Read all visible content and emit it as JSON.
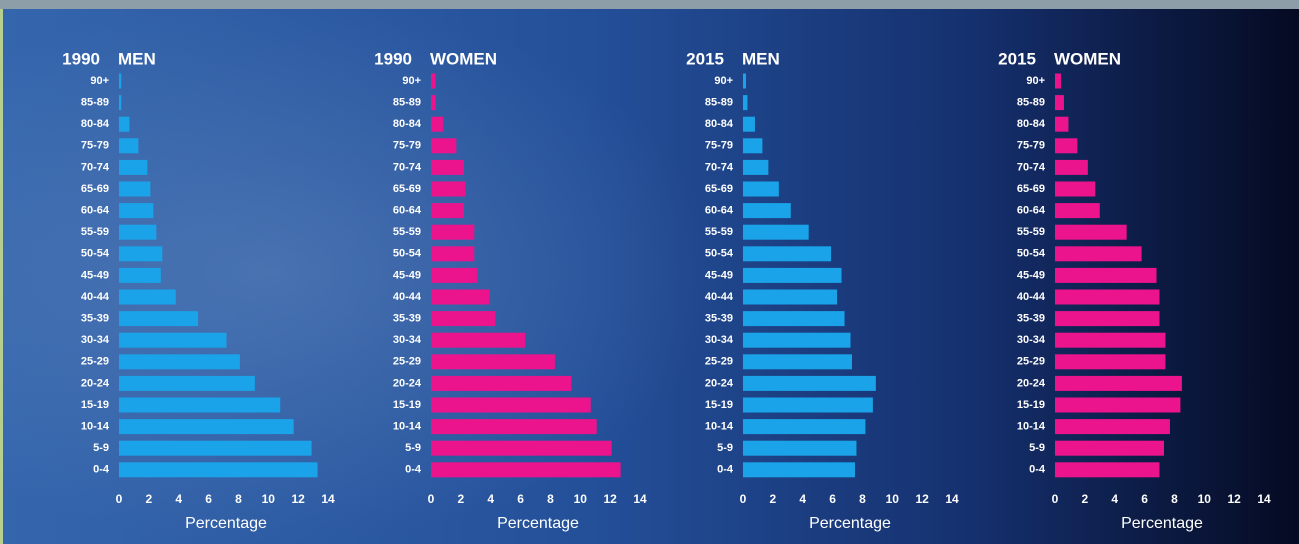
{
  "chart_data": [
    {
      "type": "bar",
      "orientation": "horizontal",
      "title": "1990",
      "subtitle": "MEN",
      "xlabel": "Percentage",
      "categories": [
        "90+",
        "85-89",
        "80-84",
        "75-79",
        "70-74",
        "65-69",
        "60-64",
        "55-59",
        "50-54",
        "45-49",
        "40-44",
        "35-39",
        "30-34",
        "25-29",
        "20-24",
        "15-19",
        "10-14",
        "5-9",
        "0-4"
      ],
      "values": [
        0.15,
        0.15,
        0.7,
        1.3,
        1.9,
        2.1,
        2.3,
        2.5,
        2.9,
        2.8,
        3.8,
        5.3,
        7.2,
        8.1,
        9.1,
        10.8,
        11.7,
        12.9,
        13.3
      ],
      "color": "#1aa3e8",
      "xlim": [
        0,
        14
      ],
      "xticks": [
        0,
        2,
        4,
        6,
        8,
        10,
        12,
        14
      ]
    },
    {
      "type": "bar",
      "orientation": "horizontal",
      "title": "1990",
      "subtitle": "WOMEN",
      "xlabel": "Percentage",
      "categories": [
        "90+",
        "85-89",
        "80-84",
        "75-79",
        "70-74",
        "65-69",
        "60-64",
        "55-59",
        "50-54",
        "45-49",
        "40-44",
        "35-39",
        "30-34",
        "25-29",
        "20-24",
        "15-19",
        "10-14",
        "5-9",
        "0-4"
      ],
      "values": [
        0.3,
        0.3,
        0.8,
        1.7,
        2.2,
        2.3,
        2.2,
        2.9,
        2.9,
        3.1,
        3.9,
        4.3,
        6.3,
        8.3,
        9.4,
        10.7,
        11.1,
        12.1,
        12.7
      ],
      "color": "#ec148c",
      "xlim": [
        0,
        14
      ],
      "xticks": [
        0,
        2,
        4,
        6,
        8,
        10,
        12,
        14
      ]
    },
    {
      "type": "bar",
      "orientation": "horizontal",
      "title": "2015",
      "subtitle": "MEN",
      "xlabel": "Percentage",
      "categories": [
        "90+",
        "85-89",
        "80-84",
        "75-79",
        "70-74",
        "65-69",
        "60-64",
        "55-59",
        "50-54",
        "45-49",
        "40-44",
        "35-39",
        "30-34",
        "25-29",
        "20-24",
        "15-19",
        "10-14",
        "5-9",
        "0-4"
      ],
      "values": [
        0.2,
        0.3,
        0.8,
        1.3,
        1.7,
        2.4,
        3.2,
        4.4,
        5.9,
        6.6,
        6.3,
        6.8,
        7.2,
        7.3,
        8.9,
        8.7,
        8.2,
        7.6,
        7.5
      ],
      "color": "#1aa3e8",
      "xlim": [
        0,
        14
      ],
      "xticks": [
        0,
        2,
        4,
        6,
        8,
        10,
        12,
        14
      ]
    },
    {
      "type": "bar",
      "orientation": "horizontal",
      "title": "2015",
      "subtitle": "WOMEN",
      "xlabel": "Percentage",
      "categories": [
        "90+",
        "85-89",
        "80-84",
        "75-79",
        "70-74",
        "65-69",
        "60-64",
        "55-59",
        "50-54",
        "45-49",
        "40-44",
        "35-39",
        "30-34",
        "25-29",
        "20-24",
        "15-19",
        "10-14",
        "5-9",
        "0-4"
      ],
      "values": [
        0.4,
        0.6,
        0.9,
        1.5,
        2.2,
        2.7,
        3.0,
        4.8,
        5.8,
        6.8,
        7.0,
        7.0,
        7.4,
        7.4,
        8.5,
        8.4,
        7.7,
        7.3,
        7.0
      ],
      "color": "#ec148c",
      "xlim": [
        0,
        14
      ],
      "xticks": [
        0,
        2,
        4,
        6,
        8,
        10,
        12,
        14
      ]
    }
  ]
}
